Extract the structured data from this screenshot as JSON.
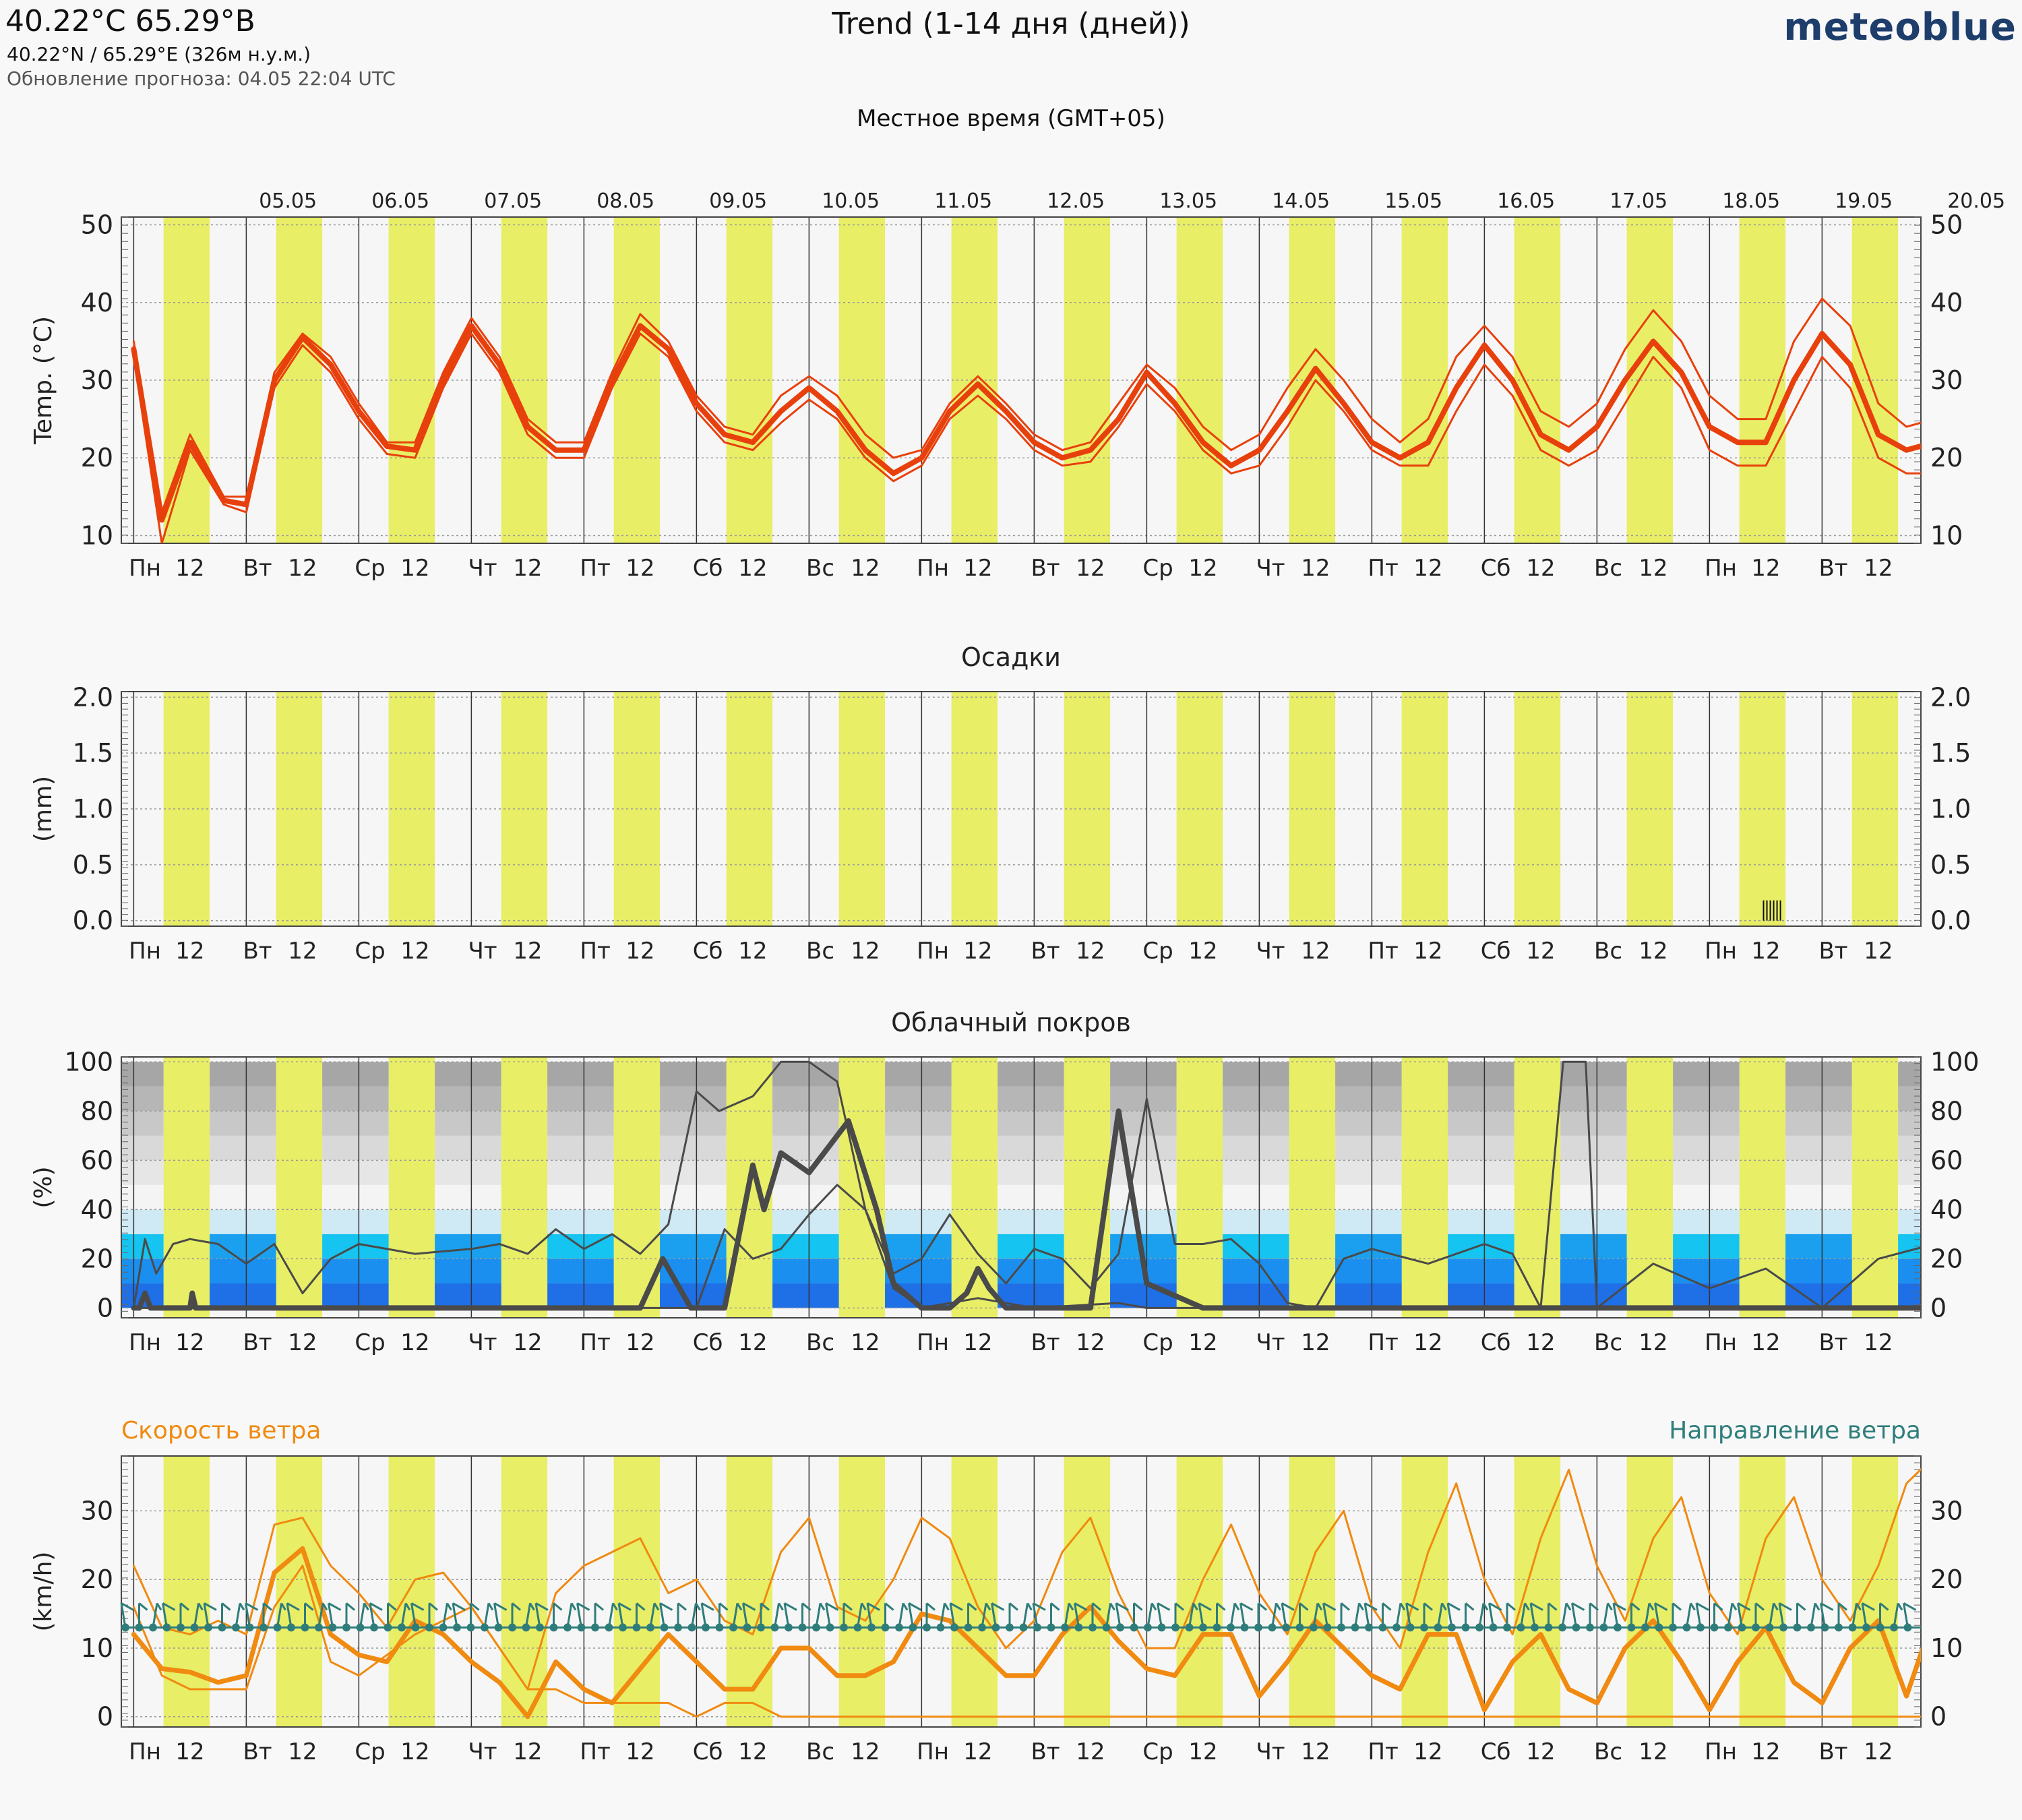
{
  "header": {
    "coord_title": "40.22°C 65.29°B",
    "coord_sub": "40.22°N / 65.29°E (326м н.у.м.)",
    "update": "Обновление прогноза: 04.05 22:04 UTC",
    "main_title": "Trend (1-14 дня (дней))",
    "brand": "meteoblue",
    "local_time": "Местное время (GMT+05)"
  },
  "colors": {
    "day_band": "#e8ee66",
    "night_band": "#f6f6f6",
    "temperature": "#e8400c",
    "wind_speed": "#f08a10",
    "wind_dir": "#2e7d7a",
    "cloud_line": "#4a4a4a",
    "cloud_low": [
      "#1f6fe6",
      "#1a8ff0",
      "#1cb0ec",
      "#15c4f0"
    ],
    "cloud_high": [
      "#cfe9f5",
      "#f4f4f4",
      "#e6e6e6",
      "#d9d9d9",
      "#c8c8c8",
      "#b6b6b6",
      "#a6a6a6"
    ]
  },
  "dates": [
    "05.05",
    "06.05",
    "07.05",
    "08.05",
    "09.05",
    "10.05",
    "11.05",
    "12.05",
    "13.05",
    "14.05",
    "15.05",
    "16.05",
    "17.05",
    "18.05",
    "19.05",
    "20.05"
  ],
  "x_tick_labels": [
    "Пн",
    "12",
    "Вт",
    "12",
    "Ср",
    "12",
    "Чт",
    "12",
    "Пт",
    "12",
    "Сб",
    "12",
    "Вс",
    "12",
    "Пн",
    "12",
    "Вт",
    "12",
    "Ср",
    "12",
    "Чт",
    "12",
    "Пт",
    "12",
    "Сб",
    "12",
    "Вс",
    "12",
    "Пн",
    "12",
    "Вт",
    "12"
  ],
  "chart_data": [
    {
      "type": "line",
      "title": "",
      "ylabel": "Temp. (°C)",
      "ylim": [
        9,
        51
      ],
      "yticks": [
        10,
        20,
        30,
        40,
        50
      ],
      "x_unit": "days from 04.05 00:00 local time",
      "xlim": [
        0,
        16.05
      ],
      "series": [
        {
          "role": "median",
          "x": [
            0,
            0.25,
            0.5,
            0.8,
            1.0,
            1.25,
            1.5,
            1.75,
            2.0,
            2.25,
            2.5,
            2.75,
            3.0,
            3.25,
            3.5,
            3.75,
            4.0,
            4.25,
            4.5,
            4.75,
            5.0,
            5.25,
            5.5,
            5.75,
            6.0,
            6.25,
            6.5,
            6.75,
            7.0,
            7.25,
            7.5,
            7.75,
            8.0,
            8.25,
            8.5,
            8.75,
            9.0,
            9.25,
            9.5,
            9.75,
            10.0,
            10.25,
            10.5,
            10.75,
            11.0,
            11.25,
            11.5,
            11.75,
            12.0,
            12.25,
            12.5,
            12.75,
            13.0,
            13.25,
            13.5,
            13.75,
            14.0,
            14.25,
            14.5,
            14.75,
            15.0,
            15.25,
            15.5,
            15.75,
            16.0
          ],
          "values": [
            34,
            12,
            22,
            14.5,
            14,
            30,
            35.5,
            32,
            26,
            21.5,
            21,
            30,
            37,
            32,
            24,
            21,
            21,
            30,
            37,
            34,
            27,
            23,
            22,
            26,
            29,
            26,
            21,
            18,
            20,
            26,
            29.5,
            26,
            22,
            20,
            21,
            25,
            31,
            27,
            22,
            19,
            21,
            26,
            31.5,
            27,
            22,
            20,
            22,
            29,
            34.5,
            30,
            23,
            21,
            24,
            30,
            35,
            31,
            24,
            22,
            22,
            30,
            36,
            32,
            23,
            21,
            22
          ]
        },
        {
          "role": "upper",
          "x": [
            0,
            0.25,
            0.5,
            0.8,
            1.0,
            1.25,
            1.5,
            1.75,
            2.0,
            2.25,
            2.5,
            2.75,
            3.0,
            3.25,
            3.5,
            3.75,
            4.0,
            4.25,
            4.5,
            4.75,
            5.0,
            5.25,
            5.5,
            5.75,
            6.0,
            6.25,
            6.5,
            6.75,
            7.0,
            7.25,
            7.5,
            7.75,
            8.0,
            8.25,
            8.5,
            8.75,
            9.0,
            9.25,
            9.5,
            9.75,
            10.0,
            10.25,
            10.5,
            10.75,
            11.0,
            11.25,
            11.5,
            11.75,
            12.0,
            12.25,
            12.5,
            12.75,
            13.0,
            13.25,
            13.5,
            13.75,
            14.0,
            14.25,
            14.5,
            14.75,
            15.0,
            15.25,
            15.5,
            15.75,
            16.0
          ],
          "values": [
            35,
            13,
            23,
            15,
            15,
            31,
            36,
            33,
            27,
            22,
            22,
            31,
            38,
            33,
            25,
            22,
            22,
            31,
            38.5,
            35,
            28,
            24,
            23,
            28,
            30.5,
            28,
            23,
            20,
            21,
            27,
            30.5,
            27,
            23,
            21,
            22,
            27,
            32,
            29,
            24,
            21,
            23,
            29,
            34,
            30,
            25,
            22,
            25,
            33,
            37,
            33,
            26,
            24,
            27,
            34,
            39,
            35,
            28,
            25,
            25,
            35,
            40.5,
            37,
            27,
            24,
            25
          ]
        },
        {
          "role": "lower",
          "x": [
            0,
            0.25,
            0.5,
            0.8,
            1.0,
            1.25,
            1.5,
            1.75,
            2.0,
            2.25,
            2.5,
            2.75,
            3.0,
            3.25,
            3.5,
            3.75,
            4.0,
            4.25,
            4.5,
            4.75,
            5.0,
            5.25,
            5.5,
            5.75,
            6.0,
            6.25,
            6.5,
            6.75,
            7.0,
            7.25,
            7.5,
            7.75,
            8.0,
            8.25,
            8.5,
            8.75,
            9.0,
            9.25,
            9.5,
            9.75,
            10.0,
            10.25,
            10.5,
            10.75,
            11.0,
            11.25,
            11.5,
            11.75,
            12.0,
            12.25,
            12.5,
            12.75,
            13.0,
            13.25,
            13.5,
            13.75,
            14.0,
            14.25,
            14.5,
            14.75,
            15.0,
            15.25,
            15.5,
            15.75,
            16.0
          ],
          "values": [
            33,
            9,
            21,
            14,
            13,
            29,
            34.5,
            31,
            25,
            20.5,
            20,
            29,
            36,
            31,
            23,
            20,
            20,
            29,
            36,
            33,
            26,
            22,
            21,
            24.5,
            27.5,
            25,
            20,
            17,
            19,
            25,
            28,
            25,
            21,
            19,
            19.5,
            24,
            29.5,
            26,
            21,
            18,
            19,
            24,
            30,
            26,
            21,
            19,
            19,
            26,
            32,
            28,
            21,
            19,
            21,
            27,
            33,
            29,
            21,
            19,
            19,
            26,
            33,
            29,
            20,
            18,
            18
          ]
        }
      ]
    },
    {
      "type": "bar",
      "title": "Осадки",
      "ylabel": "(mm)",
      "ylim": [
        -0.05,
        2.05
      ],
      "yticks": [
        0.0,
        0.5,
        1.0,
        1.5,
        2.0
      ],
      "ytick_labels": [
        "0.0",
        "0.5",
        "1.0",
        "1.5",
        "2.0"
      ],
      "x": [
        14.48,
        14.51,
        14.54,
        14.57,
        14.6,
        14.63
      ],
      "values": [
        0.02,
        0.02,
        0.02,
        0.02,
        0.02,
        0.02
      ]
    },
    {
      "type": "line",
      "title": "Облачный покров",
      "ylabel": "(%)",
      "ylim": [
        -4,
        102
      ],
      "yticks": [
        0,
        20,
        40,
        60,
        80,
        100
      ],
      "series": [
        {
          "role": "median",
          "x": [
            0,
            0.05,
            0.1,
            0.15,
            0.25,
            0.5,
            0.52,
            0.55,
            0.6,
            1.0,
            2.0,
            3.0,
            3.9,
            4.0,
            4.5,
            4.7,
            4.95,
            5.0,
            5.25,
            5.5,
            5.6,
            5.75,
            6.0,
            6.25,
            6.35,
            6.6,
            6.75,
            7.0,
            7.25,
            7.4,
            7.5,
            7.6,
            7.75,
            8.0,
            8.3,
            8.5,
            8.75,
            9.0,
            9.5,
            10.0,
            16.0
          ],
          "values": [
            0,
            0,
            6,
            0,
            0,
            0,
            6,
            0,
            0,
            0,
            0,
            0,
            0,
            0,
            0,
            20,
            0,
            0,
            0,
            58,
            40,
            63,
            55,
            70,
            76,
            40,
            10,
            0,
            0,
            6,
            16,
            8,
            0,
            0,
            0,
            0,
            80,
            10,
            0,
            0,
            0
          ]
        },
        {
          "role": "upper",
          "x": [
            0,
            0.1,
            0.2,
            0.35,
            0.5,
            0.75,
            1.0,
            1.25,
            1.5,
            1.75,
            2.0,
            2.5,
            3.0,
            3.25,
            3.5,
            3.75,
            4.0,
            4.25,
            4.5,
            4.75,
            5.0,
            5.2,
            5.5,
            5.75,
            6.0,
            6.25,
            6.5,
            6.75,
            7.0,
            7.25,
            7.5,
            7.75,
            8.0,
            8.25,
            8.5,
            8.75,
            9.0,
            9.25,
            9.5,
            9.75,
            10.0,
            10.25,
            10.5,
            10.75,
            11.0,
            11.5,
            12.0,
            12.25,
            12.5,
            12.7,
            12.75,
            12.9,
            13.0,
            13.5,
            14.0,
            14.5,
            15.0,
            15.5,
            16.0
          ],
          "values": [
            0,
            28,
            14,
            26,
            28,
            26,
            18,
            26,
            6,
            20,
            26,
            22,
            24,
            26,
            22,
            32,
            24,
            30,
            22,
            34,
            88,
            80,
            86,
            100,
            100,
            92,
            40,
            14,
            20,
            38,
            22,
            10,
            24,
            20,
            8,
            22,
            85,
            26,
            26,
            28,
            18,
            2,
            0,
            20,
            24,
            18,
            26,
            22,
            0,
            100,
            100,
            100,
            0,
            18,
            8,
            16,
            0,
            20,
            26
          ]
        },
        {
          "role": "lower",
          "x": [
            0,
            1.0,
            2.0,
            3.0,
            4.0,
            4.5,
            4.75,
            5.0,
            5.25,
            5.5,
            5.75,
            6.0,
            6.25,
            6.5,
            6.75,
            7.0,
            7.5,
            8.0,
            8.75,
            9.0,
            9.5,
            10.0,
            16.0
          ],
          "values": [
            0,
            0,
            0,
            0,
            0,
            0,
            0,
            0,
            32,
            20,
            24,
            38,
            50,
            40,
            8,
            0,
            4,
            0,
            2,
            0,
            0,
            0,
            0
          ]
        }
      ]
    },
    {
      "type": "line",
      "title": "",
      "ylabel": "(km/h)",
      "ylim": [
        -1.5,
        38
      ],
      "yticks": [
        0,
        10,
        20,
        30
      ],
      "legend": {
        "left": "Скорость ветра",
        "right": "Направление ветра"
      },
      "series": [
        {
          "role": "median",
          "x": [
            0,
            0.25,
            0.5,
            0.75,
            1.0,
            1.25,
            1.5,
            1.75,
            2.0,
            2.25,
            2.5,
            2.75,
            3.0,
            3.25,
            3.5,
            3.75,
            4.0,
            4.25,
            4.5,
            4.75,
            5.0,
            5.25,
            5.5,
            5.75,
            6.0,
            6.25,
            6.5,
            6.75,
            7.0,
            7.25,
            7.5,
            7.75,
            8.0,
            8.25,
            8.5,
            8.75,
            9.0,
            9.25,
            9.5,
            9.75,
            10.0,
            10.25,
            10.5,
            10.75,
            11.0,
            11.25,
            11.5,
            11.75,
            12.0,
            12.25,
            12.5,
            12.75,
            13.0,
            13.25,
            13.5,
            13.75,
            14.0,
            14.25,
            14.5,
            14.75,
            15.0,
            15.25,
            15.5,
            15.75,
            16.0
          ],
          "values": [
            12,
            7,
            6.5,
            5,
            6,
            21,
            24.5,
            12,
            9,
            8,
            14,
            12,
            8,
            5,
            0,
            8,
            4,
            2,
            7,
            12,
            8,
            4,
            4,
            10,
            10,
            6,
            6,
            8,
            15,
            14,
            10,
            6,
            6,
            12,
            16,
            11,
            7,
            6,
            12,
            12,
            3,
            8,
            14,
            10,
            6,
            4,
            12,
            12,
            1,
            8,
            12,
            4,
            2,
            10,
            14,
            8,
            1,
            8,
            13,
            5,
            2,
            10,
            14,
            3,
            15
          ]
        },
        {
          "role": "upper",
          "x": [
            0,
            0.25,
            0.5,
            0.75,
            1.0,
            1.25,
            1.5,
            1.75,
            2.0,
            2.25,
            2.5,
            2.75,
            3.0,
            3.25,
            3.5,
            3.75,
            4.0,
            4.25,
            4.5,
            4.75,
            5.0,
            5.25,
            5.5,
            5.75,
            6.0,
            6.25,
            6.5,
            6.75,
            7.0,
            7.25,
            7.5,
            7.75,
            8.0,
            8.25,
            8.5,
            8.75,
            9.0,
            9.25,
            9.5,
            9.75,
            10.0,
            10.25,
            10.5,
            10.75,
            11.0,
            11.25,
            11.5,
            11.75,
            12.0,
            12.25,
            12.5,
            12.75,
            13.0,
            13.25,
            13.5,
            13.75,
            14.0,
            14.25,
            14.5,
            14.75,
            15.0,
            15.25,
            15.5,
            15.75,
            16.0
          ],
          "values": [
            22,
            13,
            12,
            14,
            12,
            28,
            29,
            22,
            18,
            13,
            20,
            21,
            16,
            10,
            4,
            18,
            22,
            24,
            26,
            18,
            20,
            14,
            12,
            24,
            29,
            16,
            14,
            20,
            29,
            26,
            16,
            10,
            14,
            24,
            29,
            18,
            10,
            10,
            20,
            28,
            18,
            12,
            24,
            30,
            16,
            10,
            24,
            34,
            20,
            12,
            26,
            36,
            22,
            14,
            26,
            32,
            18,
            12,
            26,
            32,
            20,
            14,
            22,
            34,
            38
          ]
        },
        {
          "role": "lower",
          "x": [
            0,
            0.25,
            0.5,
            0.75,
            1.0,
            1.25,
            1.5,
            1.75,
            2.0,
            2.5,
            3.0,
            3.25,
            3.5,
            3.75,
            4.0,
            4.25,
            4.5,
            4.75,
            5.0,
            5.25,
            5.5,
            5.75,
            6.0,
            6.25,
            6.5,
            7.0,
            8.0,
            16.0
          ],
          "values": [
            16,
            6,
            4,
            4,
            4,
            16,
            22,
            8,
            6,
            12,
            16,
            10,
            4,
            4,
            2,
            2,
            2,
            2,
            0,
            2,
            2,
            0,
            0,
            0,
            0,
            0,
            0,
            0
          ]
        }
      ]
    }
  ]
}
